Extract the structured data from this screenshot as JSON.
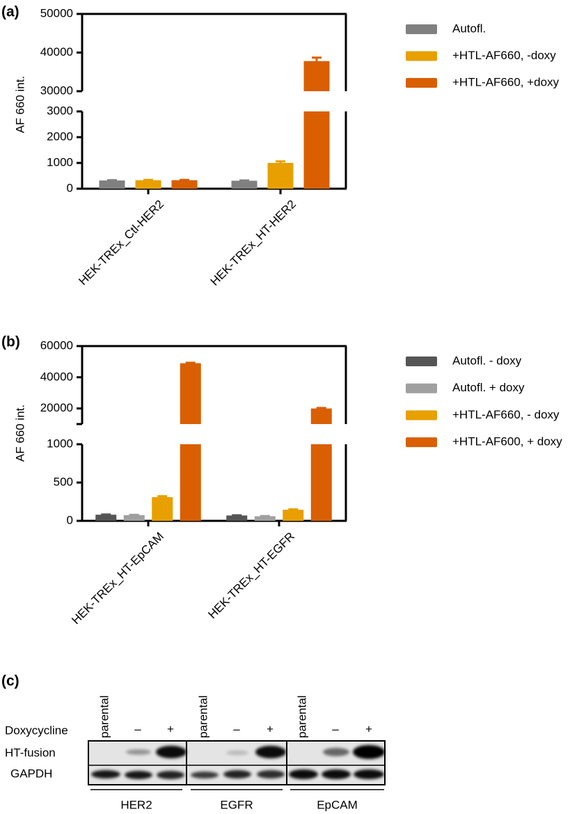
{
  "chart_data": [
    {
      "type": "bar",
      "panel_label": "(a)",
      "y_label": "AF 660 int.",
      "categories": [
        "HEK-TREx_Ctl-HER2",
        "HEK-TREx_HT-HER2"
      ],
      "segments": [
        {
          "ylim": [
            0,
            3000
          ],
          "yticks": [
            0,
            1000,
            2000,
            3000
          ]
        },
        {
          "ylim": [
            30000,
            50000
          ],
          "yticks": [
            30000,
            40000,
            50000
          ]
        }
      ],
      "series": [
        {
          "name": "Autofl.",
          "color": "#808080",
          "values": [
            320,
            310
          ],
          "errors": [
            10,
            10
          ]
        },
        {
          "name": "+HTL-AF660, -doxy",
          "color": "#e8a000",
          "values": [
            330,
            1000
          ],
          "errors": [
            10,
            60
          ]
        },
        {
          "name": "+HTL-AF660, +doxy",
          "color": "#d95f02",
          "values": [
            330,
            37800
          ],
          "errors": [
            10,
            900
          ]
        }
      ]
    },
    {
      "type": "bar",
      "panel_label": "(b)",
      "y_label": "AF 660 int.",
      "categories": [
        "HEK-TREx_HT-EpCAM",
        "HEK-TREx_HT-EGFR"
      ],
      "segments": [
        {
          "ylim": [
            0,
            1000
          ],
          "yticks": [
            0,
            500,
            1000
          ]
        },
        {
          "ylim": [
            10000,
            60000
          ],
          "yticks": [
            20000,
            40000,
            60000
          ]
        }
      ],
      "series": [
        {
          "name": "Autofl. - doxy",
          "color": "#555555",
          "values": [
            80,
            70
          ],
          "errors": [
            3,
            3
          ]
        },
        {
          "name": "Autofl. + doxy",
          "color": "#a0a0a0",
          "values": [
            75,
            60
          ],
          "errors": [
            3,
            3
          ]
        },
        {
          "name": "+HTL-AF660, - doxy",
          "color": "#e8a000",
          "values": [
            310,
            145
          ],
          "errors": [
            12,
            5
          ]
        },
        {
          "name": "+HTL-AF600, + doxy",
          "color": "#d95f02",
          "values": [
            49000,
            20000
          ],
          "errors": [
            300,
            300
          ]
        }
      ]
    }
  ],
  "blot": {
    "panel_label": "(c)",
    "row_labels": [
      "Doxycycline",
      "HT-fusion",
      "GAPDH"
    ],
    "groups": [
      {
        "name": "HER2",
        "lanes": [
          "parental",
          "–",
          "+"
        ]
      },
      {
        "name": "EGFR",
        "lanes": [
          "parental",
          "–",
          "+"
        ]
      },
      {
        "name": "EpCAM",
        "lanes": [
          "parental",
          "–",
          "+"
        ]
      }
    ]
  }
}
